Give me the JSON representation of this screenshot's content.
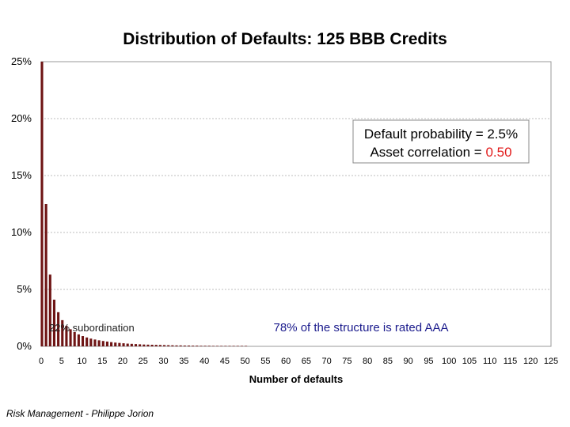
{
  "chart_data": {
    "type": "bar",
    "title": "Distribution of Defaults: 125 BBB Credits",
    "xlabel": "Number of defaults",
    "ylabel": "",
    "ylim": [
      0,
      25
    ],
    "yticks": [
      "0%",
      "5%",
      "10%",
      "15%",
      "20%",
      "25%"
    ],
    "xlim": [
      0,
      125
    ],
    "xticks": [
      "0",
      "5",
      "10",
      "15",
      "20",
      "25",
      "30",
      "35",
      "40",
      "45",
      "50",
      "55",
      "60",
      "65",
      "70",
      "75",
      "80",
      "85",
      "90",
      "95",
      "100",
      "105",
      "110",
      "115",
      "120",
      "125"
    ],
    "grid": true,
    "bar_color": "#6e1414",
    "legend": {
      "placement": "top-right",
      "line1": "Default probability = 2.5%",
      "line2_label": "Asset correlation = ",
      "line2_value": "0.50",
      "value_color": "#e21b1b"
    },
    "annotations": {
      "left": "22% subordination",
      "right": "78% of the structure is rated AAA"
    },
    "x": [
      0,
      1,
      2,
      3,
      4,
      5,
      6,
      7,
      8,
      9,
      10,
      11,
      12,
      13,
      14,
      15,
      16,
      17,
      18,
      19,
      20,
      21,
      22,
      23,
      24,
      25,
      26,
      27,
      28,
      29,
      30,
      31,
      32,
      33,
      34,
      35,
      36,
      37,
      38,
      39,
      40,
      41,
      42,
      43,
      44,
      45,
      46,
      47,
      48,
      49,
      50
    ],
    "values": [
      25.0,
      12.5,
      6.3,
      4.1,
      3.0,
      2.3,
      1.8,
      1.5,
      1.25,
      1.05,
      0.9,
      0.78,
      0.68,
      0.6,
      0.53,
      0.47,
      0.42,
      0.37,
      0.33,
      0.3,
      0.27,
      0.24,
      0.22,
      0.2,
      0.18,
      0.16,
      0.15,
      0.14,
      0.13,
      0.12,
      0.11,
      0.1,
      0.09,
      0.08,
      0.08,
      0.07,
      0.07,
      0.06,
      0.06,
      0.05,
      0.05,
      0.05,
      0.04,
      0.04,
      0.04,
      0.03,
      0.03,
      0.03,
      0.03,
      0.02,
      0.02
    ]
  },
  "footer": "Risk Management - Philippe Jorion"
}
